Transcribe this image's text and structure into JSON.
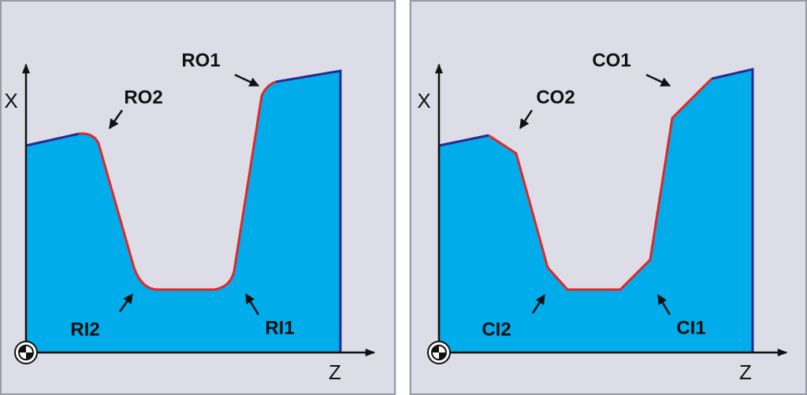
{
  "panels": [
    {
      "x_axis_label": "X",
      "z_axis_label": "Z",
      "labels": {
        "outer_1": "RO1",
        "outer_2": "RO2",
        "inner_1": "RI1",
        "inner_2": "RI2"
      }
    },
    {
      "x_axis_label": "X",
      "z_axis_label": "Z",
      "labels": {
        "outer_1": "CO1",
        "outer_2": "CO2",
        "inner_1": "CI1",
        "inner_2": "CI2"
      }
    }
  ]
}
